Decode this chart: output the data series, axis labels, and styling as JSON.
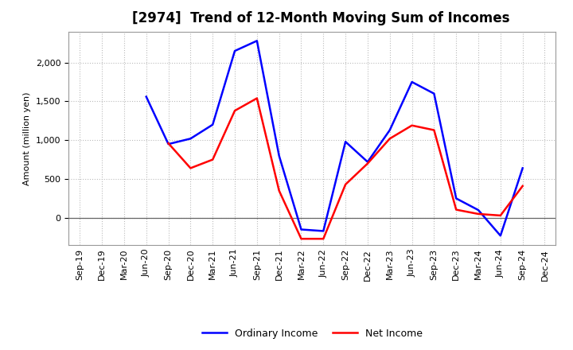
{
  "title": "[2974]  Trend of 12-Month Moving Sum of Incomes",
  "ylabel": "Amount (million yen)",
  "x_labels": [
    "Sep-19",
    "Dec-19",
    "Mar-20",
    "Jun-20",
    "Sep-20",
    "Dec-20",
    "Mar-21",
    "Jun-21",
    "Sep-21",
    "Dec-21",
    "Mar-22",
    "Jun-22",
    "Sep-22",
    "Dec-22",
    "Mar-23",
    "Jun-23",
    "Sep-23",
    "Dec-23",
    "Mar-24",
    "Jun-24",
    "Sep-24",
    "Dec-24"
  ],
  "ordinary_income": [
    null,
    null,
    null,
    1560,
    950,
    1020,
    1200,
    2150,
    2280,
    800,
    -150,
    -170,
    980,
    720,
    1130,
    1750,
    1600,
    250,
    100,
    -230,
    640,
    null
  ],
  "net_income": [
    null,
    null,
    null,
    null,
    960,
    640,
    750,
    1380,
    1540,
    350,
    -270,
    -270,
    430,
    700,
    1020,
    1190,
    1130,
    105,
    50,
    30,
    410,
    null
  ],
  "ordinary_income_color": "#0000FF",
  "net_income_color": "#FF0000",
  "ylim": [
    -350,
    2400
  ],
  "yticks": [
    0,
    500,
    1000,
    1500,
    2000
  ],
  "background_color": "#ffffff",
  "plot_bg_color": "#ffffff",
  "grid_color": "#bbbbbb",
  "linewidth": 1.8,
  "title_fontsize": 12,
  "legend_fontsize": 9,
  "axis_fontsize": 8
}
